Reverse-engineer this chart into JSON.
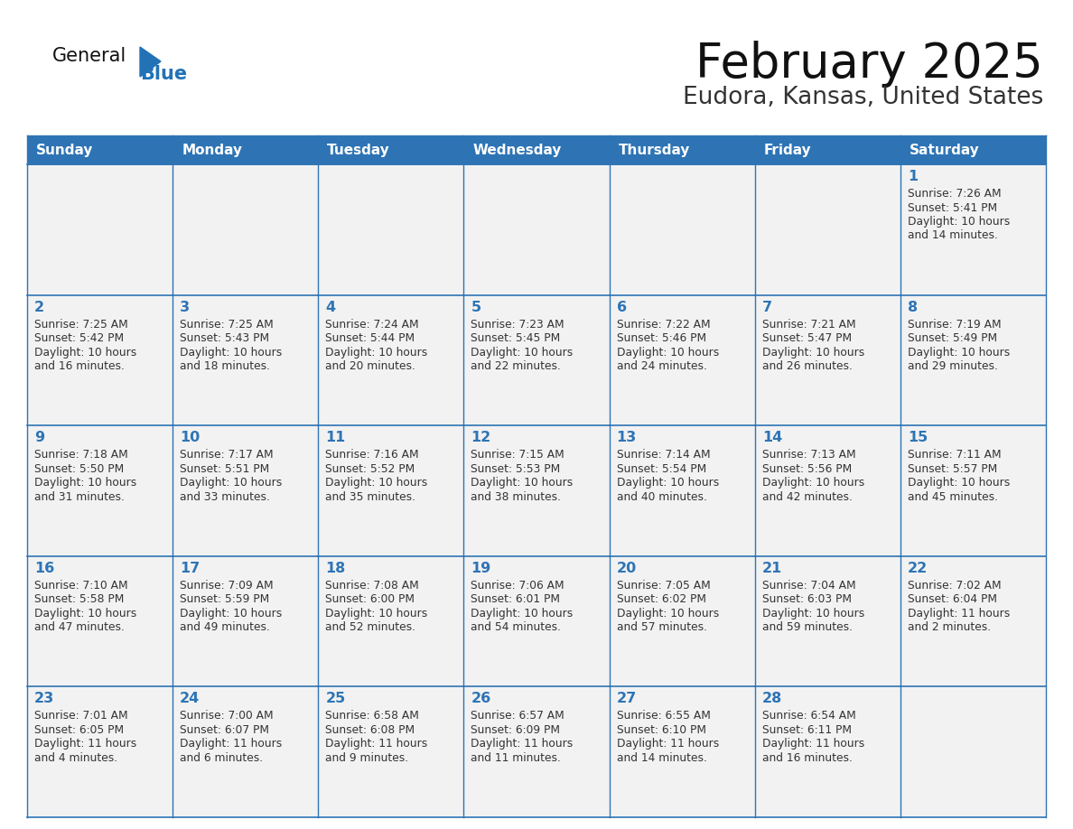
{
  "title": "February 2025",
  "subtitle": "Eudora, Kansas, United States",
  "days_of_week": [
    "Sunday",
    "Monday",
    "Tuesday",
    "Wednesday",
    "Thursday",
    "Friday",
    "Saturday"
  ],
  "header_bg": "#2E74B5",
  "header_text": "#FFFFFF",
  "cell_bg": "#F2F2F2",
  "day_number_color": "#2E74B5",
  "text_color": "#333333",
  "grid_color": "#2E74B5",
  "title_color": "#111111",
  "subtitle_color": "#333333",
  "logo_general_color": "#111111",
  "logo_blue_color": "#2272B5",
  "calendar_data": [
    [
      null,
      null,
      null,
      null,
      null,
      null,
      1
    ],
    [
      2,
      3,
      4,
      5,
      6,
      7,
      8
    ],
    [
      9,
      10,
      11,
      12,
      13,
      14,
      15
    ],
    [
      16,
      17,
      18,
      19,
      20,
      21,
      22
    ],
    [
      23,
      24,
      25,
      26,
      27,
      28,
      null
    ]
  ],
  "cell_info": {
    "1": {
      "sunrise": "7:26 AM",
      "sunset": "5:41 PM",
      "daylight_line1": "Daylight: 10 hours",
      "daylight_line2": "and 14 minutes."
    },
    "2": {
      "sunrise": "7:25 AM",
      "sunset": "5:42 PM",
      "daylight_line1": "Daylight: 10 hours",
      "daylight_line2": "and 16 minutes."
    },
    "3": {
      "sunrise": "7:25 AM",
      "sunset": "5:43 PM",
      "daylight_line1": "Daylight: 10 hours",
      "daylight_line2": "and 18 minutes."
    },
    "4": {
      "sunrise": "7:24 AM",
      "sunset": "5:44 PM",
      "daylight_line1": "Daylight: 10 hours",
      "daylight_line2": "and 20 minutes."
    },
    "5": {
      "sunrise": "7:23 AM",
      "sunset": "5:45 PM",
      "daylight_line1": "Daylight: 10 hours",
      "daylight_line2": "and 22 minutes."
    },
    "6": {
      "sunrise": "7:22 AM",
      "sunset": "5:46 PM",
      "daylight_line1": "Daylight: 10 hours",
      "daylight_line2": "and 24 minutes."
    },
    "7": {
      "sunrise": "7:21 AM",
      "sunset": "5:47 PM",
      "daylight_line1": "Daylight: 10 hours",
      "daylight_line2": "and 26 minutes."
    },
    "8": {
      "sunrise": "7:19 AM",
      "sunset": "5:49 PM",
      "daylight_line1": "Daylight: 10 hours",
      "daylight_line2": "and 29 minutes."
    },
    "9": {
      "sunrise": "7:18 AM",
      "sunset": "5:50 PM",
      "daylight_line1": "Daylight: 10 hours",
      "daylight_line2": "and 31 minutes."
    },
    "10": {
      "sunrise": "7:17 AM",
      "sunset": "5:51 PM",
      "daylight_line1": "Daylight: 10 hours",
      "daylight_line2": "and 33 minutes."
    },
    "11": {
      "sunrise": "7:16 AM",
      "sunset": "5:52 PM",
      "daylight_line1": "Daylight: 10 hours",
      "daylight_line2": "and 35 minutes."
    },
    "12": {
      "sunrise": "7:15 AM",
      "sunset": "5:53 PM",
      "daylight_line1": "Daylight: 10 hours",
      "daylight_line2": "and 38 minutes."
    },
    "13": {
      "sunrise": "7:14 AM",
      "sunset": "5:54 PM",
      "daylight_line1": "Daylight: 10 hours",
      "daylight_line2": "and 40 minutes."
    },
    "14": {
      "sunrise": "7:13 AM",
      "sunset": "5:56 PM",
      "daylight_line1": "Daylight: 10 hours",
      "daylight_line2": "and 42 minutes."
    },
    "15": {
      "sunrise": "7:11 AM",
      "sunset": "5:57 PM",
      "daylight_line1": "Daylight: 10 hours",
      "daylight_line2": "and 45 minutes."
    },
    "16": {
      "sunrise": "7:10 AM",
      "sunset": "5:58 PM",
      "daylight_line1": "Daylight: 10 hours",
      "daylight_line2": "and 47 minutes."
    },
    "17": {
      "sunrise": "7:09 AM",
      "sunset": "5:59 PM",
      "daylight_line1": "Daylight: 10 hours",
      "daylight_line2": "and 49 minutes."
    },
    "18": {
      "sunrise": "7:08 AM",
      "sunset": "6:00 PM",
      "daylight_line1": "Daylight: 10 hours",
      "daylight_line2": "and 52 minutes."
    },
    "19": {
      "sunrise": "7:06 AM",
      "sunset": "6:01 PM",
      "daylight_line1": "Daylight: 10 hours",
      "daylight_line2": "and 54 minutes."
    },
    "20": {
      "sunrise": "7:05 AM",
      "sunset": "6:02 PM",
      "daylight_line1": "Daylight: 10 hours",
      "daylight_line2": "and 57 minutes."
    },
    "21": {
      "sunrise": "7:04 AM",
      "sunset": "6:03 PM",
      "daylight_line1": "Daylight: 10 hours",
      "daylight_line2": "and 59 minutes."
    },
    "22": {
      "sunrise": "7:02 AM",
      "sunset": "6:04 PM",
      "daylight_line1": "Daylight: 11 hours",
      "daylight_line2": "and 2 minutes."
    },
    "23": {
      "sunrise": "7:01 AM",
      "sunset": "6:05 PM",
      "daylight_line1": "Daylight: 11 hours",
      "daylight_line2": "and 4 minutes."
    },
    "24": {
      "sunrise": "7:00 AM",
      "sunset": "6:07 PM",
      "daylight_line1": "Daylight: 11 hours",
      "daylight_line2": "and 6 minutes."
    },
    "25": {
      "sunrise": "6:58 AM",
      "sunset": "6:08 PM",
      "daylight_line1": "Daylight: 11 hours",
      "daylight_line2": "and 9 minutes."
    },
    "26": {
      "sunrise": "6:57 AM",
      "sunset": "6:09 PM",
      "daylight_line1": "Daylight: 11 hours",
      "daylight_line2": "and 11 minutes."
    },
    "27": {
      "sunrise": "6:55 AM",
      "sunset": "6:10 PM",
      "daylight_line1": "Daylight: 11 hours",
      "daylight_line2": "and 14 minutes."
    },
    "28": {
      "sunrise": "6:54 AM",
      "sunset": "6:11 PM",
      "daylight_line1": "Daylight: 11 hours",
      "daylight_line2": "and 16 minutes."
    }
  }
}
